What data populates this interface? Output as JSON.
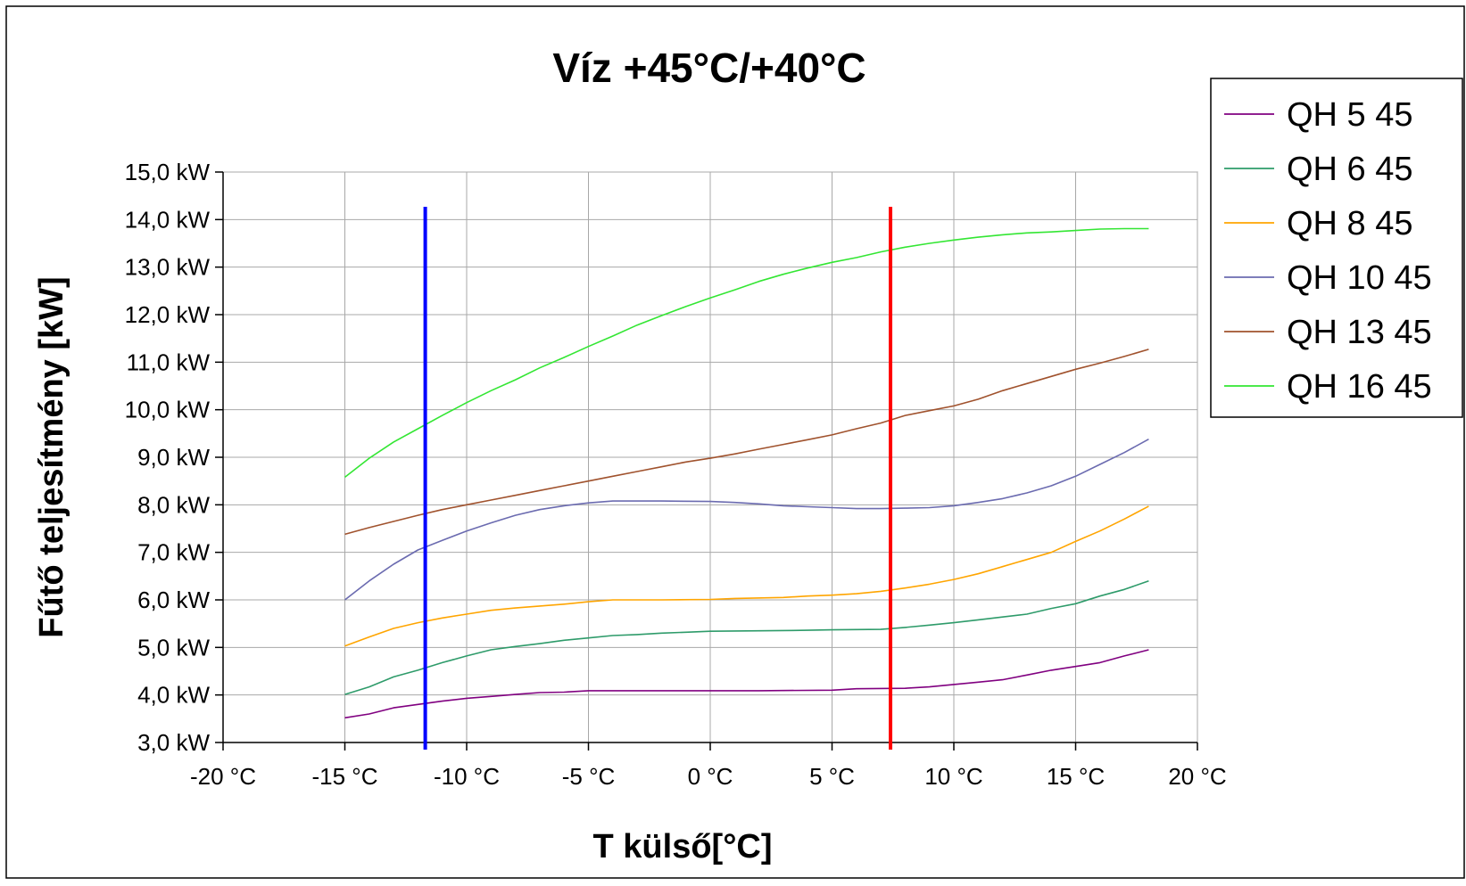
{
  "chart_data": {
    "type": "line",
    "title": "Víz +45°C/+40°C",
    "xlabel": "T külső[°C]",
    "ylabel": "Fűtő teljesítmény [kW]",
    "xlim": [
      -20,
      20
    ],
    "ylim": [
      3,
      15
    ],
    "x_ticks": [
      -20,
      -15,
      -10,
      -5,
      0,
      5,
      10,
      15,
      20
    ],
    "x_tick_labels": [
      "-20 °C",
      "-15 °C",
      "-10 °C",
      "-5 °C",
      "0 °C",
      "5 °C",
      "10 °C",
      "15 °C",
      "20 °C"
    ],
    "y_ticks": [
      3,
      4,
      5,
      6,
      7,
      8,
      9,
      10,
      11,
      12,
      13,
      14,
      15
    ],
    "y_tick_labels": [
      "3,0 kW",
      "4,0 kW",
      "5,0 kW",
      "6,0 kW",
      "7,0 kW",
      "8,0 kW",
      "9,0 kW",
      "10,0 kW",
      "11,0 kW",
      "12,0 kW",
      "13,0 kW",
      "14,0 kW",
      "15,0 kW"
    ],
    "grid": true,
    "legend_position": "top-right",
    "vertical_markers": [
      {
        "x": -11.7,
        "color": "#0000ff"
      },
      {
        "x": 7.4,
        "color": "#ff0000"
      }
    ],
    "series": [
      {
        "name": "QH 5 45",
        "color": "#800080",
        "points": [
          [
            -15,
            3.52
          ],
          [
            -14,
            3.6
          ],
          [
            -13,
            3.73
          ],
          [
            -12,
            3.8
          ],
          [
            -11,
            3.87
          ],
          [
            -10,
            3.93
          ],
          [
            -9,
            3.97
          ],
          [
            -8,
            4.01
          ],
          [
            -7,
            4.05
          ],
          [
            -6,
            4.06
          ],
          [
            -5,
            4.09
          ],
          [
            -2,
            4.09
          ],
          [
            0,
            4.09
          ],
          [
            2,
            4.09
          ],
          [
            5,
            4.1
          ],
          [
            6,
            4.13
          ],
          [
            8,
            4.14
          ],
          [
            9,
            4.17
          ],
          [
            10,
            4.22
          ],
          [
            11,
            4.27
          ],
          [
            12,
            4.32
          ],
          [
            13,
            4.42
          ],
          [
            14,
            4.52
          ],
          [
            15,
            4.6
          ],
          [
            16,
            4.68
          ],
          [
            17,
            4.82
          ],
          [
            18,
            4.95
          ]
        ]
      },
      {
        "name": "QH 6 45",
        "color": "#2e9b6a",
        "points": [
          [
            -15,
            4.01
          ],
          [
            -14,
            4.17
          ],
          [
            -13,
            4.38
          ],
          [
            -12,
            4.52
          ],
          [
            -11,
            4.68
          ],
          [
            -10,
            4.82
          ],
          [
            -9,
            4.95
          ],
          [
            -8,
            5.02
          ],
          [
            -7,
            5.08
          ],
          [
            -6,
            5.15
          ],
          [
            -5,
            5.2
          ],
          [
            -4,
            5.25
          ],
          [
            -3,
            5.27
          ],
          [
            -2,
            5.3
          ],
          [
            -1,
            5.32
          ],
          [
            0,
            5.34
          ],
          [
            2,
            5.35
          ],
          [
            4,
            5.36
          ],
          [
            5,
            5.37
          ],
          [
            7,
            5.38
          ],
          [
            8,
            5.42
          ],
          [
            9,
            5.47
          ],
          [
            10,
            5.52
          ],
          [
            11,
            5.58
          ],
          [
            12,
            5.64
          ],
          [
            13,
            5.7
          ],
          [
            14,
            5.82
          ],
          [
            15,
            5.92
          ],
          [
            16,
            6.08
          ],
          [
            17,
            6.22
          ],
          [
            18,
            6.4
          ]
        ]
      },
      {
        "name": "QH 8 45",
        "color": "#ffa500",
        "points": [
          [
            -15,
            5.03
          ],
          [
            -14,
            5.22
          ],
          [
            -13,
            5.4
          ],
          [
            -12,
            5.52
          ],
          [
            -11,
            5.62
          ],
          [
            -10,
            5.7
          ],
          [
            -9,
            5.78
          ],
          [
            -8,
            5.83
          ],
          [
            -7,
            5.87
          ],
          [
            -6,
            5.91
          ],
          [
            -5,
            5.96
          ],
          [
            -4,
            6.0
          ],
          [
            -2,
            6.0
          ],
          [
            0,
            6.01
          ],
          [
            1,
            6.03
          ],
          [
            3,
            6.05
          ],
          [
            4,
            6.08
          ],
          [
            5,
            6.1
          ],
          [
            6,
            6.13
          ],
          [
            7,
            6.18
          ],
          [
            8,
            6.25
          ],
          [
            9,
            6.33
          ],
          [
            10,
            6.43
          ],
          [
            11,
            6.55
          ],
          [
            12,
            6.7
          ],
          [
            13,
            6.85
          ],
          [
            14,
            7.0
          ],
          [
            15,
            7.23
          ],
          [
            16,
            7.45
          ],
          [
            17,
            7.7
          ],
          [
            18,
            7.97
          ]
        ]
      },
      {
        "name": "QH 10 45",
        "color": "#6b6bb0",
        "points": [
          [
            -15,
            6.0
          ],
          [
            -14,
            6.4
          ],
          [
            -13,
            6.75
          ],
          [
            -12,
            7.05
          ],
          [
            -11,
            7.25
          ],
          [
            -10,
            7.45
          ],
          [
            -9,
            7.62
          ],
          [
            -8,
            7.78
          ],
          [
            -7,
            7.9
          ],
          [
            -6,
            7.98
          ],
          [
            -5,
            8.04
          ],
          [
            -4,
            8.08
          ],
          [
            -2,
            8.08
          ],
          [
            0,
            8.07
          ],
          [
            1,
            8.05
          ],
          [
            2,
            8.02
          ],
          [
            3,
            7.98
          ],
          [
            4,
            7.96
          ],
          [
            5,
            7.94
          ],
          [
            6,
            7.92
          ],
          [
            7,
            7.92
          ],
          [
            8,
            7.93
          ],
          [
            9,
            7.94
          ],
          [
            10,
            7.98
          ],
          [
            11,
            8.05
          ],
          [
            12,
            8.13
          ],
          [
            13,
            8.25
          ],
          [
            14,
            8.4
          ],
          [
            15,
            8.6
          ],
          [
            16,
            8.85
          ],
          [
            17,
            9.1
          ],
          [
            18,
            9.38
          ]
        ]
      },
      {
        "name": "QH 13 45",
        "color": "#a0522d",
        "points": [
          [
            -15,
            7.38
          ],
          [
            -14,
            7.52
          ],
          [
            -13,
            7.65
          ],
          [
            -12,
            7.78
          ],
          [
            -11,
            7.9
          ],
          [
            -10,
            8.0
          ],
          [
            -9,
            8.1
          ],
          [
            -8,
            8.2
          ],
          [
            -7,
            8.3
          ],
          [
            -6,
            8.4
          ],
          [
            -5,
            8.5
          ],
          [
            -4,
            8.6
          ],
          [
            -3,
            8.7
          ],
          [
            -2,
            8.8
          ],
          [
            -1,
            8.9
          ],
          [
            0,
            8.98
          ],
          [
            1,
            9.07
          ],
          [
            2,
            9.17
          ],
          [
            3,
            9.27
          ],
          [
            4,
            9.37
          ],
          [
            5,
            9.47
          ],
          [
            6,
            9.6
          ],
          [
            7,
            9.72
          ],
          [
            8,
            9.88
          ],
          [
            9,
            9.98
          ],
          [
            10,
            10.08
          ],
          [
            11,
            10.22
          ],
          [
            12,
            10.4
          ],
          [
            13,
            10.55
          ],
          [
            14,
            10.7
          ],
          [
            15,
            10.85
          ],
          [
            16,
            10.98
          ],
          [
            17,
            11.12
          ],
          [
            18,
            11.27
          ]
        ]
      },
      {
        "name": "QH 16 45",
        "color": "#33e633",
        "points": [
          [
            -15,
            8.58
          ],
          [
            -14,
            8.98
          ],
          [
            -13,
            9.32
          ],
          [
            -12,
            9.6
          ],
          [
            -11,
            9.88
          ],
          [
            -10,
            10.15
          ],
          [
            -9,
            10.4
          ],
          [
            -8,
            10.63
          ],
          [
            -7,
            10.88
          ],
          [
            -6,
            11.1
          ],
          [
            -5,
            11.33
          ],
          [
            -4,
            11.55
          ],
          [
            -3,
            11.78
          ],
          [
            -2,
            11.98
          ],
          [
            -1,
            12.17
          ],
          [
            0,
            12.35
          ],
          [
            1,
            12.52
          ],
          [
            2,
            12.7
          ],
          [
            3,
            12.85
          ],
          [
            4,
            12.98
          ],
          [
            5,
            13.1
          ],
          [
            6,
            13.2
          ],
          [
            7,
            13.32
          ],
          [
            8,
            13.42
          ],
          [
            9,
            13.5
          ],
          [
            10,
            13.57
          ],
          [
            11,
            13.63
          ],
          [
            12,
            13.68
          ],
          [
            13,
            13.72
          ],
          [
            14,
            13.74
          ],
          [
            15,
            13.77
          ],
          [
            16,
            13.8
          ],
          [
            17,
            13.81
          ],
          [
            18,
            13.81
          ]
        ]
      }
    ]
  }
}
